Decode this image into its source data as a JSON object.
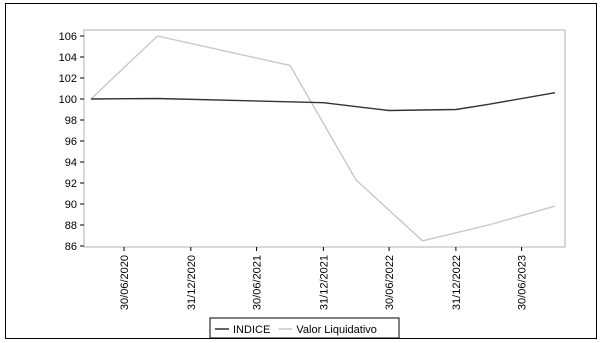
{
  "chart_data": {
    "type": "line",
    "title": "",
    "xlabel": "",
    "ylabel": "",
    "ylim": [
      86,
      106
    ],
    "yticks": [
      86,
      88,
      90,
      92,
      94,
      96,
      98,
      100,
      102,
      104,
      106
    ],
    "x_tick_labels": [
      "30/06/2020",
      "31/12/2020",
      "30/06/2021",
      "31/12/2021",
      "30/06/2022",
      "31/12/2022",
      "30/06/2023"
    ],
    "x_points": [
      "31/03/2020",
      "30/09/2020",
      "31/03/2021",
      "30/09/2021",
      "31/03/2022",
      "30/09/2022",
      "31/03/2023",
      "30/09/2023"
    ],
    "series": [
      {
        "name": "INDICE",
        "color": "#333333",
        "x": [
          "31/03/2020",
          "30/09/2020",
          "31/12/2021",
          "30/06/2022",
          "31/12/2022",
          "31/03/2023",
          "30/09/2023"
        ],
        "values": [
          100.0,
          100.05,
          99.65,
          98.9,
          99.0,
          99.5,
          100.6
        ]
      },
      {
        "name": "Valor Liquidativo",
        "color": "#c8c8c8",
        "x": [
          "31/03/2020",
          "30/09/2020",
          "31/03/2021",
          "30/09/2021",
          "31/03/2022",
          "30/09/2022",
          "31/03/2023",
          "30/09/2023"
        ],
        "values": [
          100.0,
          106.0,
          104.6,
          103.2,
          92.3,
          86.5,
          88.0,
          89.8
        ]
      }
    ],
    "grid": false,
    "legend_position": "bottom-center"
  }
}
